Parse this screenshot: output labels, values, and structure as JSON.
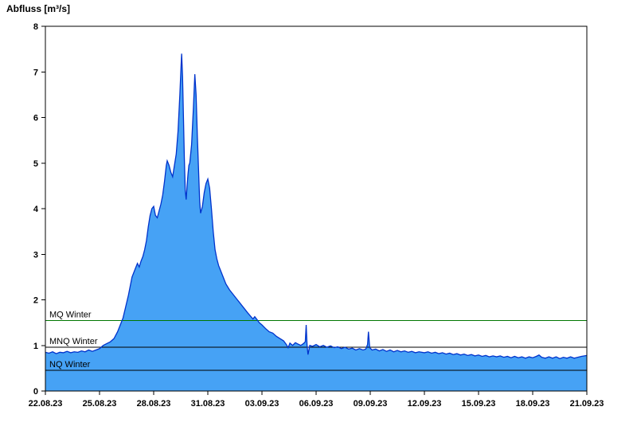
{
  "chart_data": {
    "type": "area",
    "title": "Abfluss [m³/s]",
    "x_axis": {
      "range_days": [
        0,
        30
      ],
      "tick_interval_days": 3,
      "tick_labels": [
        "22.08.23",
        "25.08.23",
        "28.08.23",
        "31.08.23",
        "03.09.23",
        "06.09.23",
        "09.09.23",
        "12.09.23",
        "15.09.23",
        "18.09.23",
        "21.09.23"
      ]
    },
    "y_axis": {
      "range": [
        0,
        8
      ],
      "tick_labels": [
        "0",
        "1",
        "2",
        "3",
        "4",
        "5",
        "6",
        "7",
        "8"
      ]
    },
    "legend": "none",
    "grid": "off",
    "colors": {
      "area_fill": "#46a2f5",
      "series_line": "#0033cc",
      "axis": "#000000"
    },
    "reference_lines": [
      {
        "label": "MQ Winter",
        "value": 1.55,
        "color": "#007700"
      },
      {
        "label": "MNQ Winter",
        "value": 0.96,
        "color": "#000000"
      },
      {
        "label": "NQ Winter",
        "value": 0.45,
        "color": "#000000"
      }
    ],
    "series": [
      {
        "name": "Abfluss",
        "unit": "m³/s",
        "points": [
          [
            0,
            0.85
          ],
          [
            0.2,
            0.83
          ],
          [
            0.4,
            0.86
          ],
          [
            0.6,
            0.82
          ],
          [
            0.8,
            0.85
          ],
          [
            1,
            0.84
          ],
          [
            1.2,
            0.87
          ],
          [
            1.4,
            0.84
          ],
          [
            1.6,
            0.86
          ],
          [
            1.8,
            0.85
          ],
          [
            2,
            0.88
          ],
          [
            2.2,
            0.86
          ],
          [
            2.4,
            0.9
          ],
          [
            2.6,
            0.87
          ],
          [
            2.8,
            0.9
          ],
          [
            3,
            0.93
          ],
          [
            3.2,
            1.0
          ],
          [
            3.4,
            1.04
          ],
          [
            3.6,
            1.08
          ],
          [
            3.8,
            1.15
          ],
          [
            4,
            1.3
          ],
          [
            4.15,
            1.45
          ],
          [
            4.3,
            1.6
          ],
          [
            4.45,
            1.85
          ],
          [
            4.6,
            2.1
          ],
          [
            4.7,
            2.3
          ],
          [
            4.8,
            2.5
          ],
          [
            4.9,
            2.6
          ],
          [
            5,
            2.7
          ],
          [
            5.1,
            2.8
          ],
          [
            5.2,
            2.72
          ],
          [
            5.3,
            2.85
          ],
          [
            5.4,
            2.95
          ],
          [
            5.5,
            3.1
          ],
          [
            5.6,
            3.3
          ],
          [
            5.7,
            3.6
          ],
          [
            5.8,
            3.85
          ],
          [
            5.9,
            4.0
          ],
          [
            6,
            4.05
          ],
          [
            6.1,
            3.85
          ],
          [
            6.2,
            3.8
          ],
          [
            6.3,
            3.95
          ],
          [
            6.4,
            4.1
          ],
          [
            6.5,
            4.3
          ],
          [
            6.6,
            4.6
          ],
          [
            6.7,
            4.95
          ],
          [
            6.75,
            5.05
          ],
          [
            6.85,
            4.95
          ],
          [
            6.95,
            4.8
          ],
          [
            7.05,
            4.7
          ],
          [
            7.15,
            4.95
          ],
          [
            7.25,
            5.2
          ],
          [
            7.35,
            5.7
          ],
          [
            7.45,
            6.5
          ],
          [
            7.52,
            7.15
          ],
          [
            7.55,
            7.4
          ],
          [
            7.6,
            6.9
          ],
          [
            7.65,
            6.0
          ],
          [
            7.7,
            5.1
          ],
          [
            7.75,
            4.4
          ],
          [
            7.8,
            4.2
          ],
          [
            7.85,
            4.5
          ],
          [
            7.9,
            4.75
          ],
          [
            7.95,
            4.95
          ],
          [
            8.0,
            5.0
          ],
          [
            8.1,
            5.4
          ],
          [
            8.2,
            6.2
          ],
          [
            8.28,
            6.95
          ],
          [
            8.35,
            6.5
          ],
          [
            8.42,
            5.6
          ],
          [
            8.5,
            4.7
          ],
          [
            8.55,
            4.15
          ],
          [
            8.6,
            3.9
          ],
          [
            8.7,
            4.05
          ],
          [
            8.8,
            4.35
          ],
          [
            8.9,
            4.55
          ],
          [
            9.0,
            4.65
          ],
          [
            9.1,
            4.45
          ],
          [
            9.2,
            4.0
          ],
          [
            9.3,
            3.5
          ],
          [
            9.4,
            3.1
          ],
          [
            9.5,
            2.9
          ],
          [
            9.6,
            2.75
          ],
          [
            9.7,
            2.65
          ],
          [
            9.8,
            2.55
          ],
          [
            9.9,
            2.45
          ],
          [
            10,
            2.35
          ],
          [
            10.2,
            2.22
          ],
          [
            10.4,
            2.12
          ],
          [
            10.6,
            2.02
          ],
          [
            10.8,
            1.92
          ],
          [
            11,
            1.82
          ],
          [
            11.2,
            1.72
          ],
          [
            11.35,
            1.65
          ],
          [
            11.5,
            1.58
          ],
          [
            11.6,
            1.63
          ],
          [
            11.7,
            1.58
          ],
          [
            11.85,
            1.5
          ],
          [
            12,
            1.45
          ],
          [
            12.2,
            1.37
          ],
          [
            12.4,
            1.3
          ],
          [
            12.6,
            1.27
          ],
          [
            12.8,
            1.2
          ],
          [
            13,
            1.15
          ],
          [
            13.2,
            1.1
          ],
          [
            13.35,
            1.02
          ],
          [
            13.45,
            0.95
          ],
          [
            13.55,
            1.05
          ],
          [
            13.7,
            1.0
          ],
          [
            13.85,
            1.06
          ],
          [
            14,
            1.03
          ],
          [
            14.15,
            1.0
          ],
          [
            14.3,
            1.04
          ],
          [
            14.4,
            1.08
          ],
          [
            14.45,
            1.45
          ],
          [
            14.5,
            1.0
          ],
          [
            14.55,
            0.8
          ],
          [
            14.65,
            1.0
          ],
          [
            14.8,
            0.98
          ],
          [
            15,
            1.02
          ],
          [
            15.2,
            0.97
          ],
          [
            15.4,
            1.0
          ],
          [
            15.6,
            0.96
          ],
          [
            15.8,
            0.99
          ],
          [
            16,
            0.95
          ],
          [
            16.2,
            0.97
          ],
          [
            16.4,
            0.93
          ],
          [
            16.6,
            0.96
          ],
          [
            16.8,
            0.92
          ],
          [
            17,
            0.94
          ],
          [
            17.2,
            0.9
          ],
          [
            17.4,
            0.93
          ],
          [
            17.6,
            0.9
          ],
          [
            17.75,
            0.92
          ],
          [
            17.85,
            1.02
          ],
          [
            17.9,
            1.3
          ],
          [
            17.97,
            0.95
          ],
          [
            18.1,
            0.9
          ],
          [
            18.3,
            0.92
          ],
          [
            18.5,
            0.88
          ],
          [
            18.7,
            0.91
          ],
          [
            18.9,
            0.87
          ],
          [
            19.1,
            0.9
          ],
          [
            19.3,
            0.86
          ],
          [
            19.5,
            0.89
          ],
          [
            19.7,
            0.86
          ],
          [
            19.9,
            0.88
          ],
          [
            20.1,
            0.85
          ],
          [
            20.3,
            0.87
          ],
          [
            20.5,
            0.84
          ],
          [
            20.7,
            0.86
          ],
          [
            21,
            0.84
          ],
          [
            21.2,
            0.86
          ],
          [
            21.4,
            0.83
          ],
          [
            21.6,
            0.85
          ],
          [
            21.8,
            0.82
          ],
          [
            22,
            0.84
          ],
          [
            22.2,
            0.81
          ],
          [
            22.4,
            0.83
          ],
          [
            22.6,
            0.8
          ],
          [
            22.8,
            0.82
          ],
          [
            23,
            0.79
          ],
          [
            23.2,
            0.81
          ],
          [
            23.4,
            0.78
          ],
          [
            23.6,
            0.8
          ],
          [
            23.8,
            0.77
          ],
          [
            24,
            0.79
          ],
          [
            24.2,
            0.76
          ],
          [
            24.4,
            0.78
          ],
          [
            24.6,
            0.75
          ],
          [
            24.8,
            0.77
          ],
          [
            25,
            0.75
          ],
          [
            25.2,
            0.77
          ],
          [
            25.4,
            0.74
          ],
          [
            25.6,
            0.76
          ],
          [
            25.8,
            0.73
          ],
          [
            26,
            0.76
          ],
          [
            26.2,
            0.73
          ],
          [
            26.4,
            0.75
          ],
          [
            26.6,
            0.72
          ],
          [
            26.8,
            0.75
          ],
          [
            27,
            0.73
          ],
          [
            27.2,
            0.76
          ],
          [
            27.35,
            0.79
          ],
          [
            27.5,
            0.74
          ],
          [
            27.7,
            0.72
          ],
          [
            27.9,
            0.75
          ],
          [
            28.1,
            0.72
          ],
          [
            28.3,
            0.75
          ],
          [
            28.5,
            0.71
          ],
          [
            28.7,
            0.74
          ],
          [
            28.9,
            0.72
          ],
          [
            29.1,
            0.75
          ],
          [
            29.3,
            0.72
          ],
          [
            29.5,
            0.74
          ],
          [
            29.7,
            0.76
          ],
          [
            30,
            0.78
          ]
        ]
      }
    ]
  }
}
